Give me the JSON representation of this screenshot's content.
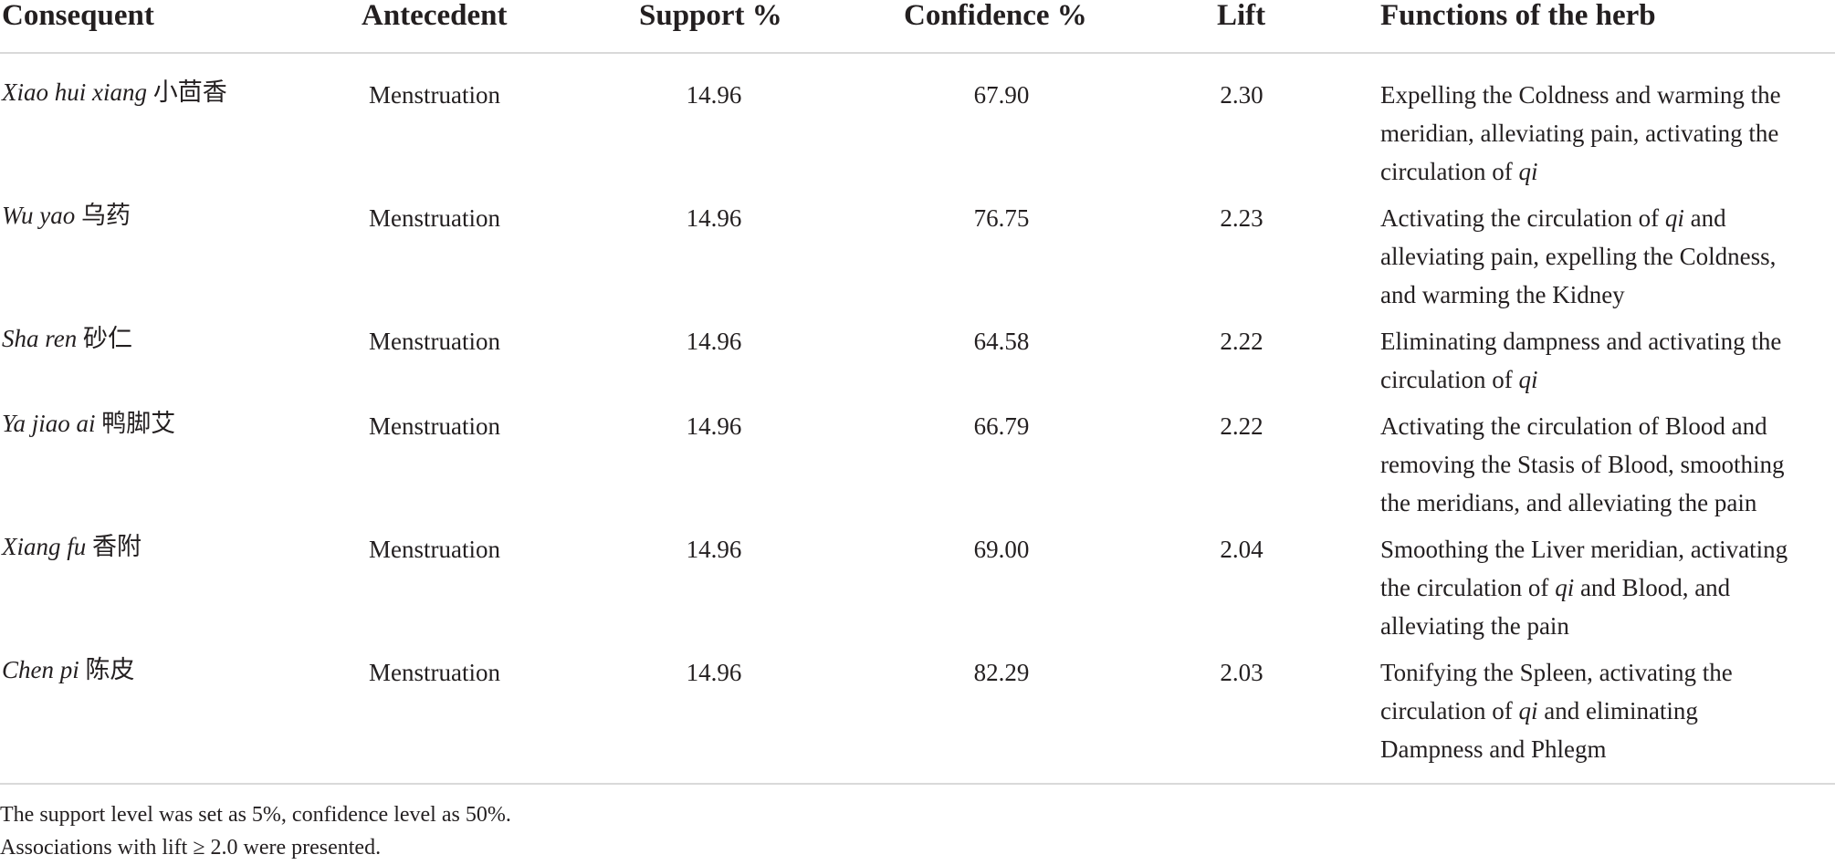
{
  "headers": {
    "consequent": "Consequent",
    "antecedent": "Antecedent",
    "support": "Support %",
    "confidence": "Confidence %",
    "lift": "Lift",
    "functions": "Functions of the herb"
  },
  "rows": [
    {
      "consequent_latin": "Xiao hui xiang",
      "consequent_chinese": "小茴香",
      "antecedent": "Menstruation",
      "support": "14.96",
      "confidence": "67.90",
      "lift": "2.30",
      "functions": "Expelling the Coldness and warming the\nmeridian, alleviating pain, activating the\ncirculation of qi"
    },
    {
      "consequent_latin": "Wu yao",
      "consequent_chinese": "乌药",
      "antecedent": "Menstruation",
      "support": "14.96",
      "confidence": "76.75",
      "lift": "2.23",
      "functions": "Activating the circulation of qi and\nalleviating pain, expelling the Coldness,\nand warming the Kidney"
    },
    {
      "consequent_latin": "Sha ren",
      "consequent_chinese": "砂仁",
      "antecedent": "Menstruation",
      "support": "14.96",
      "confidence": "64.58",
      "lift": "2.22",
      "functions": "Eliminating dampness and activating the\ncirculation of qi"
    },
    {
      "consequent_latin": "Ya jiao ai",
      "consequent_chinese": "鸭脚艾",
      "antecedent": "Menstruation",
      "support": "14.96",
      "confidence": "66.79",
      "lift": "2.22",
      "functions": "Activating the circulation of Blood and\nremoving the Stasis of Blood, smoothing\nthe meridians, and alleviating the pain"
    },
    {
      "consequent_latin": "Xiang fu",
      "consequent_chinese": "香附",
      "antecedent": "Menstruation",
      "support": "14.96",
      "confidence": "69.00",
      "lift": "2.04",
      "functions": "Smoothing the Liver meridian, activating\nthe circulation of qi and Blood, and\nalleviating the pain"
    },
    {
      "consequent_latin": "Chen pi",
      "consequent_chinese": "陈皮",
      "antecedent": "Menstruation",
      "support": "14.96",
      "confidence": "82.29",
      "lift": "2.03",
      "functions": "Tonifying the Spleen, activating the\ncirculation of qi and eliminating\nDampness and Phlegm"
    }
  ],
  "footnotes": [
    "The support level was set as 5%, confidence level as 50%.",
    "Associations with lift ≥ 2.0 were presented."
  ]
}
